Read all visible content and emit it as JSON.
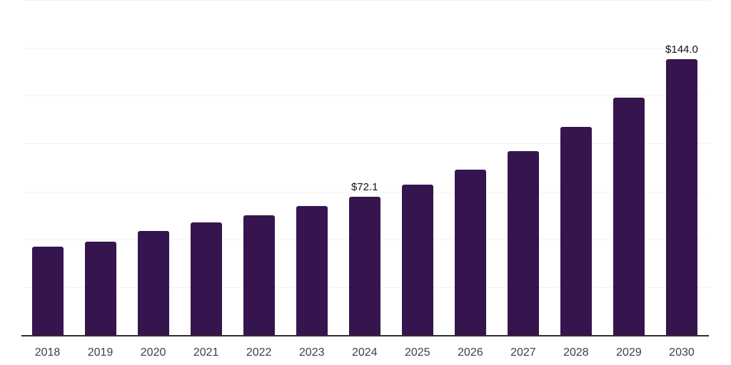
{
  "chart_data": {
    "type": "bar",
    "title": "",
    "xlabel": "",
    "ylabel": "",
    "categories": [
      "2018",
      "2019",
      "2020",
      "2021",
      "2022",
      "2023",
      "2024",
      "2025",
      "2026",
      "2027",
      "2028",
      "2029",
      "2030"
    ],
    "values": [
      46.1,
      48.6,
      54.5,
      58.9,
      62.7,
      67.3,
      72.1,
      78.4,
      86.5,
      96.2,
      108.8,
      124.0,
      144.0
    ],
    "data_labels": [
      "",
      "",
      "",
      "",
      "",
      "",
      "$72.1",
      "",
      "",
      "",
      "",
      "",
      "$144.0"
    ],
    "ylim": [
      0,
      175
    ],
    "gridline_step": 25,
    "grid": true,
    "legend": false,
    "y_axis_tick_labels_visible": false,
    "colors": {
      "bar": "#36154E",
      "axis_line": "#2E2E2E",
      "gridline": "#F1F1F1",
      "tick_label": "#3F3F3F",
      "data_label": "#111111",
      "background": "#FFFFFF"
    }
  }
}
